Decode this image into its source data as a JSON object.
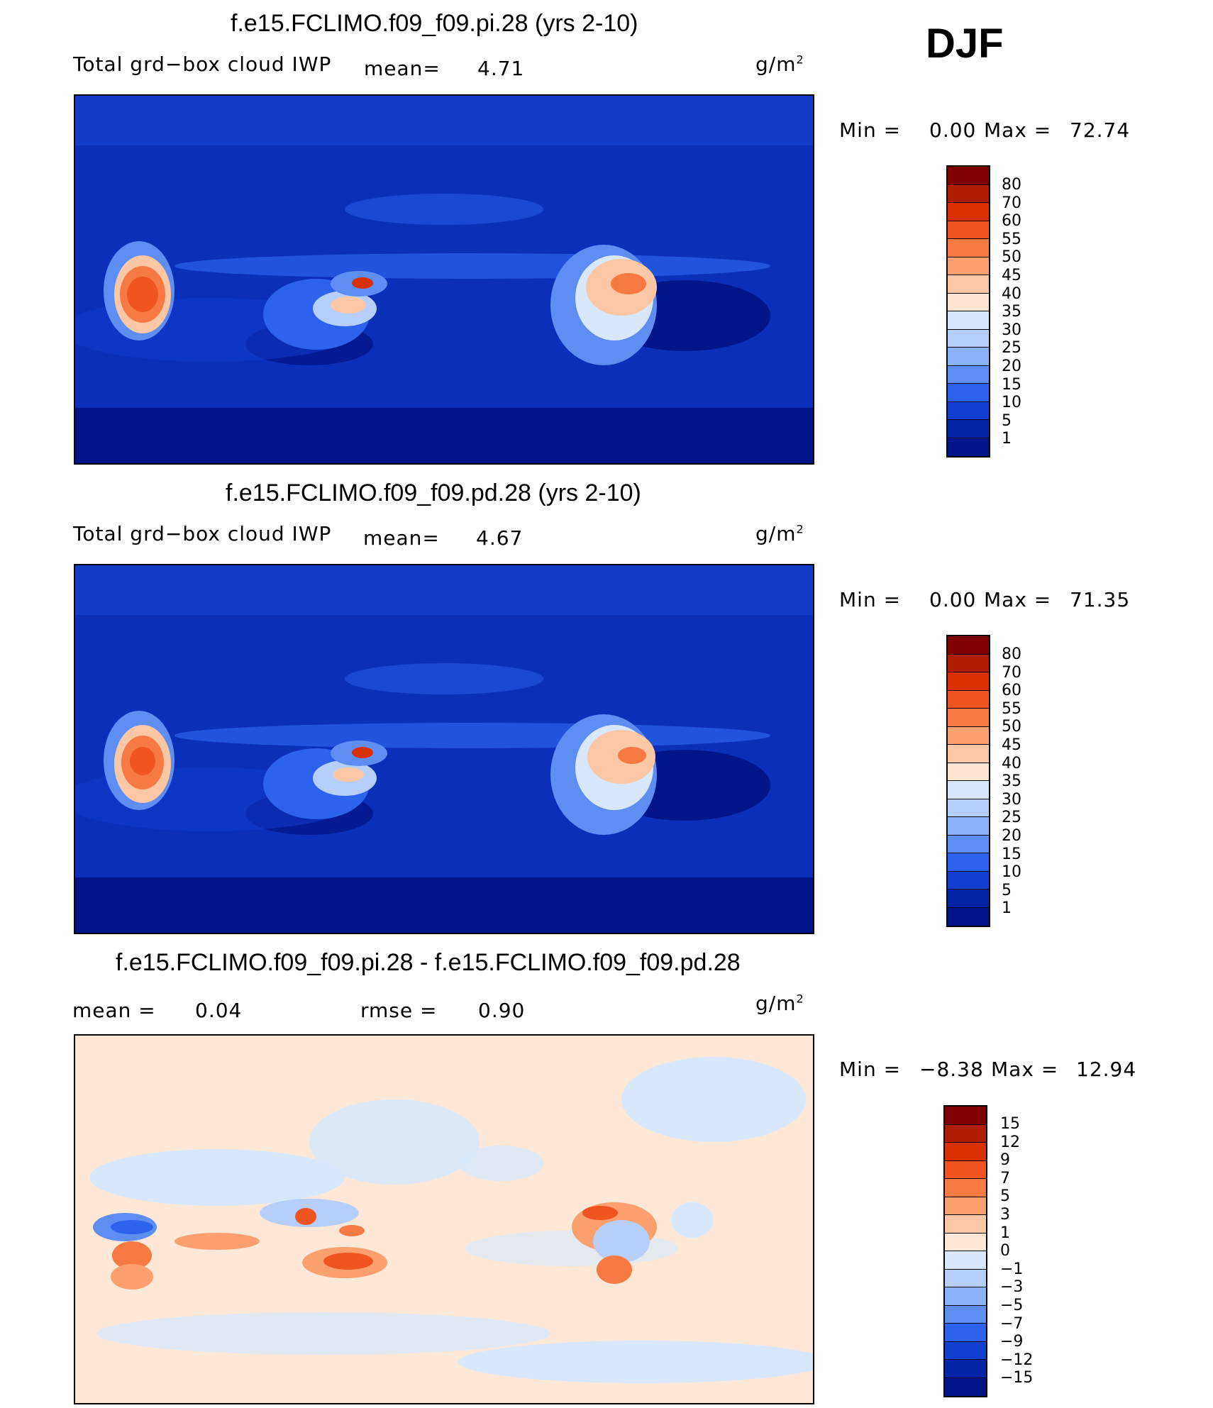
{
  "season": "DJF",
  "panels": [
    {
      "title": "f.e15.FCLIMO.f09_f09.pi.28 (yrs 2-10)",
      "variable": "Total grd−box cloud IWP",
      "mean_label": "mean=",
      "mean_value": "4.71",
      "unit_base": "g/m",
      "unit_exp": "2",
      "min_label": "Min  =",
      "min_value": "0.00",
      "max_label": "Max  =",
      "max_value": "72.74",
      "colorbar": {
        "levels": [
          "80",
          "70",
          "60",
          "55",
          "50",
          "45",
          "40",
          "35",
          "30",
          "25",
          "20",
          "15",
          "10",
          "5",
          "1"
        ],
        "colors": [
          "#7f0000",
          "#b01c00",
          "#d93000",
          "#f05420",
          "#f77a45",
          "#fca070",
          "#fcc7a5",
          "#fbe4d2",
          "#d8e8fa",
          "#b5cffa",
          "#8ab2f8",
          "#5e8ef2",
          "#2c62ec",
          "#123ed2",
          "#0424a8",
          "#00158a"
        ]
      }
    },
    {
      "title": "f.e15.FCLIMO.f09_f09.pd.28 (yrs 2-10)",
      "variable": "Total grd−box cloud IWP",
      "mean_label": "mean=",
      "mean_value": "4.67",
      "unit_base": "g/m",
      "unit_exp": "2",
      "min_label": "Min  =",
      "min_value": "0.00",
      "max_label": "Max  =",
      "max_value": "71.35",
      "colorbar": {
        "levels": [
          "80",
          "70",
          "60",
          "55",
          "50",
          "45",
          "40",
          "35",
          "30",
          "25",
          "20",
          "15",
          "10",
          "5",
          "1"
        ],
        "colors": [
          "#7f0000",
          "#b01c00",
          "#d93000",
          "#f05420",
          "#f77a45",
          "#fca070",
          "#fcc7a5",
          "#fbe4d2",
          "#d8e8fa",
          "#b5cffa",
          "#8ab2f8",
          "#5e8ef2",
          "#2c62ec",
          "#123ed2",
          "#0424a8",
          "#00158a"
        ]
      }
    },
    {
      "title": "f.e15.FCLIMO.f09_f09.pi.28 - f.e15.FCLIMO.f09_f09.pd.28",
      "mean_label": "mean  =",
      "mean_value": "0.04",
      "rmse_label": "rmse  =",
      "rmse_value": "0.90",
      "unit_base": "g/m",
      "unit_exp": "2",
      "min_label": "Min  =",
      "min_value": "−8.38",
      "max_label": "Max  =",
      "max_value": "12.94",
      "colorbar": {
        "levels": [
          "15",
          "12",
          "9",
          "7",
          "5",
          "3",
          "1",
          "0",
          "−1",
          "−3",
          "−5",
          "−7",
          "−9",
          "−12",
          "−15"
        ],
        "colors": [
          "#7f0000",
          "#b01c00",
          "#d93000",
          "#f05420",
          "#f77a45",
          "#fca070",
          "#fcc7a5",
          "#fde8d8",
          "#d8e8fa",
          "#b5cffa",
          "#8ab2f8",
          "#5e8ef2",
          "#2c62ec",
          "#123ed2",
          "#0424a8",
          "#00158a"
        ]
      }
    }
  ]
}
